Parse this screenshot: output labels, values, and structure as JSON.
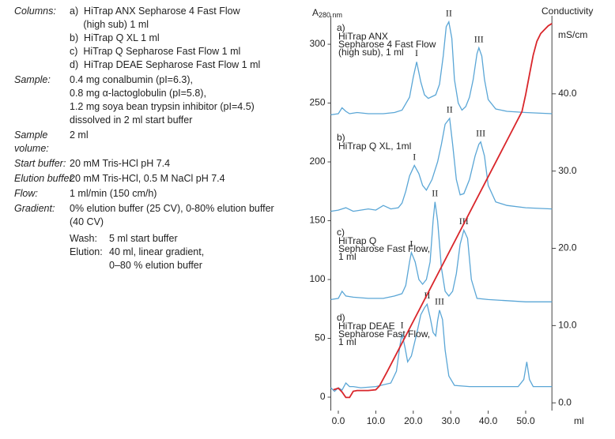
{
  "conditions": [
    {
      "label": [
        "Columns:"
      ],
      "lines": [
        "a)  HiTrap ANX Sepharose 4 Fast Flow",
        "     (high sub) 1 ml",
        "b)  HiTrap Q XL 1 ml",
        "c)  HiTrap Q Sepharose Fast Flow 1 ml",
        "d)  HiTrap DEAE Sepharose Fast Flow 1 ml"
      ]
    },
    {
      "label": [
        "Sample:"
      ],
      "lines": [
        "0.4 mg conalbumin (pI=6.3),",
        "0.8 mg α-lactoglobulin (pI=5.8),",
        "1.2 mg soya bean trypsin inhibitor (pI=4.5)",
        "dissolved in 2 ml start buffer"
      ]
    },
    {
      "label": [
        "Sample",
        "volume:"
      ],
      "lines": [
        "",
        "2 ml"
      ]
    },
    {
      "label": [
        "Start buffer:"
      ],
      "lines": [
        "20 mM Tris-HCl pH 7.4"
      ]
    },
    {
      "label": [
        "Elution buffer:"
      ],
      "lines": [
        "20 mM Tris-HCl, 0.5 M NaCl pH 7.4"
      ]
    },
    {
      "label": [
        "Flow:"
      ],
      "lines": [
        "1 ml/min (150 cm/h)"
      ]
    },
    {
      "label": [
        "Gradient:"
      ],
      "lines": [
        "0% elution buffer (25 CV), 0-80% elution buffer",
        "(40 CV)"
      ]
    }
  ],
  "gradient_steps": [
    {
      "label": "Wash:",
      "lines": [
        "5 ml start buffer"
      ]
    },
    {
      "label": "Elution:",
      "lines": [
        "40 ml, linear gradient,",
        "0–80 % elution buffer"
      ]
    }
  ],
  "chart_data": {
    "type": "line",
    "ylabel": {
      "main": "A",
      "sub": "280 nm"
    },
    "y2label": "Conductivity",
    "y2unit": "mS/cm",
    "xunit": "ml",
    "xlim": [
      -2,
      57
    ],
    "ylim": [
      -11.4,
      324.2
    ],
    "y2lim": [
      -1.0,
      50.1
    ],
    "xticks": [
      {
        "value": 0,
        "label": "0.0"
      },
      {
        "value": 10,
        "label": "10.0"
      },
      {
        "value": 20,
        "label": "20.0"
      },
      {
        "value": 30,
        "label": "30.0"
      },
      {
        "value": 40,
        "label": "40.0"
      },
      {
        "value": 50,
        "label": "50.0"
      }
    ],
    "yticks": [
      0,
      50,
      100,
      150,
      200,
      250,
      300
    ],
    "y2ticks": [
      {
        "value": 0,
        "label": "0.0"
      },
      {
        "value": 10,
        "label": "10.0"
      },
      {
        "value": 20,
        "label": "20.0"
      },
      {
        "value": 30,
        "label": "30.0"
      },
      {
        "value": 40,
        "label": "40.0"
      }
    ],
    "series": [
      {
        "name": "a)",
        "color": "#5aa6d6",
        "annotation": [
          "HiTrap ANX",
          "Sepharose 4 Fast Flow",
          "(high sub), 1 ml"
        ],
        "x": [
          -2,
          0,
          1,
          2,
          3,
          5,
          8,
          12,
          15,
          17,
          19,
          20,
          20.9,
          22,
          23,
          24,
          26,
          27,
          28,
          28.8,
          29.5,
          30.3,
          31,
          32,
          33,
          34,
          35,
          36,
          37,
          37.5,
          38.3,
          39,
          40,
          42,
          45,
          50,
          57
        ],
        "values": [
          240,
          241,
          246,
          243,
          241,
          242,
          241,
          241,
          242,
          244,
          255,
          272,
          285,
          268,
          257,
          254,
          257,
          266,
          290,
          315,
          319,
          305,
          270,
          250,
          244,
          247,
          255,
          270,
          292,
          297,
          290,
          270,
          253,
          245,
          243,
          242,
          241
        ],
        "peaks": [
          {
            "label": "I",
            "x": 20.9,
            "y": 285
          },
          {
            "label": "II",
            "x": 29.5,
            "y": 319
          },
          {
            "label": "III",
            "x": 37.5,
            "y": 297
          }
        ]
      },
      {
        "name": "b)",
        "color": "#5aa6d6",
        "annotation": [
          "HiTrap Q XL, 1ml"
        ],
        "x": [
          -2,
          0,
          2,
          4,
          6,
          8,
          10,
          12,
          14,
          16,
          17,
          18,
          19,
          20.3,
          21.5,
          22.5,
          23.5,
          25,
          26.5,
          27.5,
          28.5,
          29.7,
          30.5,
          31.5,
          32.5,
          33.5,
          35,
          36.5,
          37.5,
          38,
          39,
          40,
          42,
          45,
          50,
          57
        ],
        "values": [
          158,
          159,
          161,
          158,
          159,
          160,
          159,
          163,
          160,
          161,
          165,
          175,
          188,
          197,
          190,
          180,
          176,
          185,
          200,
          215,
          232,
          237,
          215,
          185,
          172,
          173,
          185,
          205,
          215,
          217,
          205,
          180,
          166,
          163,
          161,
          160
        ],
        "peaks": [
          {
            "label": "I",
            "x": 20.3,
            "y": 197
          },
          {
            "label": "II",
            "x": 29.7,
            "y": 237
          },
          {
            "label": "III",
            "x": 38,
            "y": 217
          }
        ]
      },
      {
        "name": "c)",
        "color": "#5aa6d6",
        "annotation": [
          "HiTrap Q",
          "Sepharose Fast Flow,",
          "1 ml"
        ],
        "x": [
          -2,
          0,
          1,
          2,
          4,
          8,
          12,
          15,
          17,
          18,
          19,
          19.5,
          20.5,
          21.5,
          22.5,
          23.5,
          24.5,
          25.3,
          25.8,
          26.5,
          27.5,
          28.5,
          29.5,
          30.5,
          31.5,
          32.5,
          33.5,
          34.5,
          35.5,
          37,
          40,
          45,
          50,
          57
        ],
        "values": [
          83,
          84,
          90,
          86,
          85,
          84,
          84,
          86,
          88,
          95,
          115,
          123,
          115,
          100,
          96,
          100,
          115,
          150,
          166,
          150,
          110,
          90,
          86,
          90,
          105,
          130,
          142,
          135,
          100,
          84,
          83,
          82,
          81,
          81
        ],
        "peaks": [
          {
            "label": "I",
            "x": 19.5,
            "y": 123
          },
          {
            "label": "II",
            "x": 25.8,
            "y": 166
          },
          {
            "label": "III",
            "x": 33.5,
            "y": 142
          }
        ]
      },
      {
        "name": "d)",
        "color": "#5aa6d6",
        "annotation": [
          "HiTrap DEAE",
          "Sepharose Fast Flow,",
          "1 ml"
        ],
        "x": [
          -2,
          -1,
          0,
          1,
          2,
          3,
          4,
          6,
          10,
          14,
          15.5,
          16.5,
          17,
          17.8,
          18.5,
          19.5,
          21,
          22,
          23,
          23.7,
          24.5,
          25.3,
          26,
          26.5,
          27,
          27.8,
          28.5,
          29.5,
          31,
          35,
          40,
          45,
          48,
          49.5,
          50.3,
          51,
          52,
          57
        ],
        "values": [
          8,
          5,
          8,
          6,
          12,
          9,
          9,
          8,
          9,
          12,
          22,
          45,
          54,
          42,
          30,
          35,
          55,
          70,
          76,
          79,
          68,
          55,
          52,
          65,
          74,
          66,
          40,
          18,
          10,
          9,
          9,
          9,
          9,
          15,
          30,
          15,
          9,
          9
        ],
        "peaks": [
          {
            "label": "I",
            "x": 17,
            "y": 54
          },
          {
            "label": "II",
            "x": 23.7,
            "y": 79
          },
          {
            "label": "III",
            "x": 27,
            "y": 74
          }
        ]
      },
      {
        "name": "Conductivity",
        "color": "#d9262b",
        "axis": "y2",
        "x": [
          -1.3,
          0,
          1,
          2,
          3,
          4,
          5,
          8,
          10,
          11,
          13,
          49,
          50,
          51,
          52,
          53,
          54,
          55,
          56,
          57
        ],
        "values": [
          1.7,
          1.9,
          1.4,
          0.7,
          0.7,
          1.5,
          1.6,
          1.6,
          1.7,
          2.2,
          4,
          37.7,
          39.9,
          42.5,
          45,
          46.8,
          47.8,
          48.3,
          48.8,
          49.1
        ]
      }
    ]
  }
}
